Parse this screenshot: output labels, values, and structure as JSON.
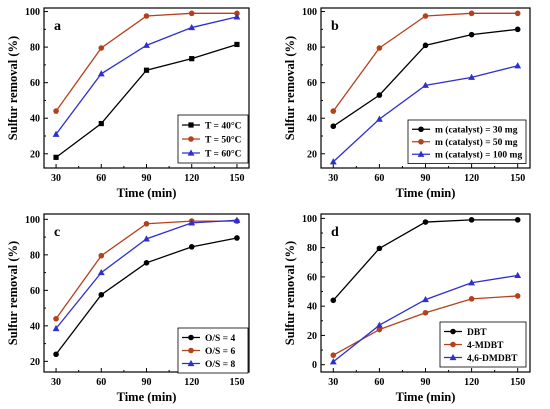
{
  "chart_data": [
    {
      "type": "line",
      "panel_label": "a",
      "xlabel": "Time (min)",
      "ylabel": "Sulfur removal (%)",
      "x": [
        30,
        60,
        90,
        120,
        150
      ],
      "xlim": [
        22,
        158
      ],
      "ylim": [
        12,
        102
      ],
      "yticks": [
        20,
        40,
        60,
        80,
        100
      ],
      "legend_position": "center-right",
      "series": [
        {
          "name": "T = 40°C",
          "color": "#000000",
          "marker": "square",
          "values": [
            18,
            37,
            67,
            73.5,
            81.5
          ]
        },
        {
          "name": "T = 50°C",
          "color": "#b5401c",
          "marker": "circle",
          "values": [
            44,
            79.5,
            97.5,
            99,
            99
          ]
        },
        {
          "name": "T = 60°C",
          "color": "#2f2fd0",
          "marker": "triangle",
          "values": [
            31,
            65,
            81,
            91,
            97
          ]
        }
      ]
    },
    {
      "type": "line",
      "panel_label": "b",
      "xlabel": "Time (min)",
      "ylabel": "Sulfur removal (%)",
      "x": [
        30,
        60,
        90,
        120,
        150
      ],
      "xlim": [
        22,
        158
      ],
      "ylim": [
        12,
        102
      ],
      "yticks": [
        20,
        40,
        60,
        80,
        100
      ],
      "legend_position": "lower-right",
      "series": [
        {
          "name": "m (catalyst) = 30 mg",
          "color": "#000000",
          "marker": "circle",
          "values": [
            35.5,
            53,
            81,
            87,
            90
          ]
        },
        {
          "name": "m (catalyst) = 50 mg",
          "color": "#b5401c",
          "marker": "circle",
          "values": [
            44,
            79.5,
            97.5,
            99,
            99
          ]
        },
        {
          "name": "m (catalyst) = 100 mg",
          "color": "#2f2fd0",
          "marker": "triangle",
          "values": [
            15.5,
            39.5,
            58.5,
            63,
            69.5
          ]
        }
      ]
    },
    {
      "type": "line",
      "panel_label": "c",
      "xlabel": "Time (min)",
      "ylabel": "Sulfur removal (%)",
      "x": [
        30,
        60,
        90,
        120,
        150
      ],
      "xlim": [
        22,
        158
      ],
      "ylim": [
        14,
        103
      ],
      "yticks": [
        20,
        40,
        60,
        80,
        100
      ],
      "legend_position": "lower-right",
      "series": [
        {
          "name": "O/S = 4",
          "color": "#000000",
          "marker": "circle",
          "values": [
            24,
            57.5,
            75.5,
            84.5,
            89.5
          ]
        },
        {
          "name": "O/S = 6",
          "color": "#b5401c",
          "marker": "circle",
          "values": [
            44,
            79.5,
            97.5,
            99,
            99
          ]
        },
        {
          "name": "O/S = 8",
          "color": "#2f2fd0",
          "marker": "triangle",
          "values": [
            38.5,
            70,
            89,
            98,
            99.5
          ]
        }
      ]
    },
    {
      "type": "line",
      "panel_label": "d",
      "xlabel": "Time (min)",
      "ylabel": "Sulfur removal (%)",
      "x": [
        30,
        60,
        90,
        120,
        150
      ],
      "xlim": [
        22,
        158
      ],
      "ylim": [
        -5,
        103
      ],
      "yticks": [
        0,
        20,
        40,
        60,
        80,
        100
      ],
      "legend_position": "lower-right",
      "series": [
        {
          "name": "DBT",
          "color": "#000000",
          "marker": "circle",
          "values": [
            44,
            79.5,
            97.5,
            99,
            99
          ]
        },
        {
          "name": "4-MDBT",
          "color": "#b5401c",
          "marker": "circle",
          "values": [
            6.5,
            24,
            35.5,
            45,
            47
          ]
        },
        {
          "name": "4,6-DMDBT",
          "color": "#2f2fd0",
          "marker": "triangle",
          "values": [
            2,
            27,
            44.5,
            56,
            61
          ]
        }
      ]
    }
  ]
}
